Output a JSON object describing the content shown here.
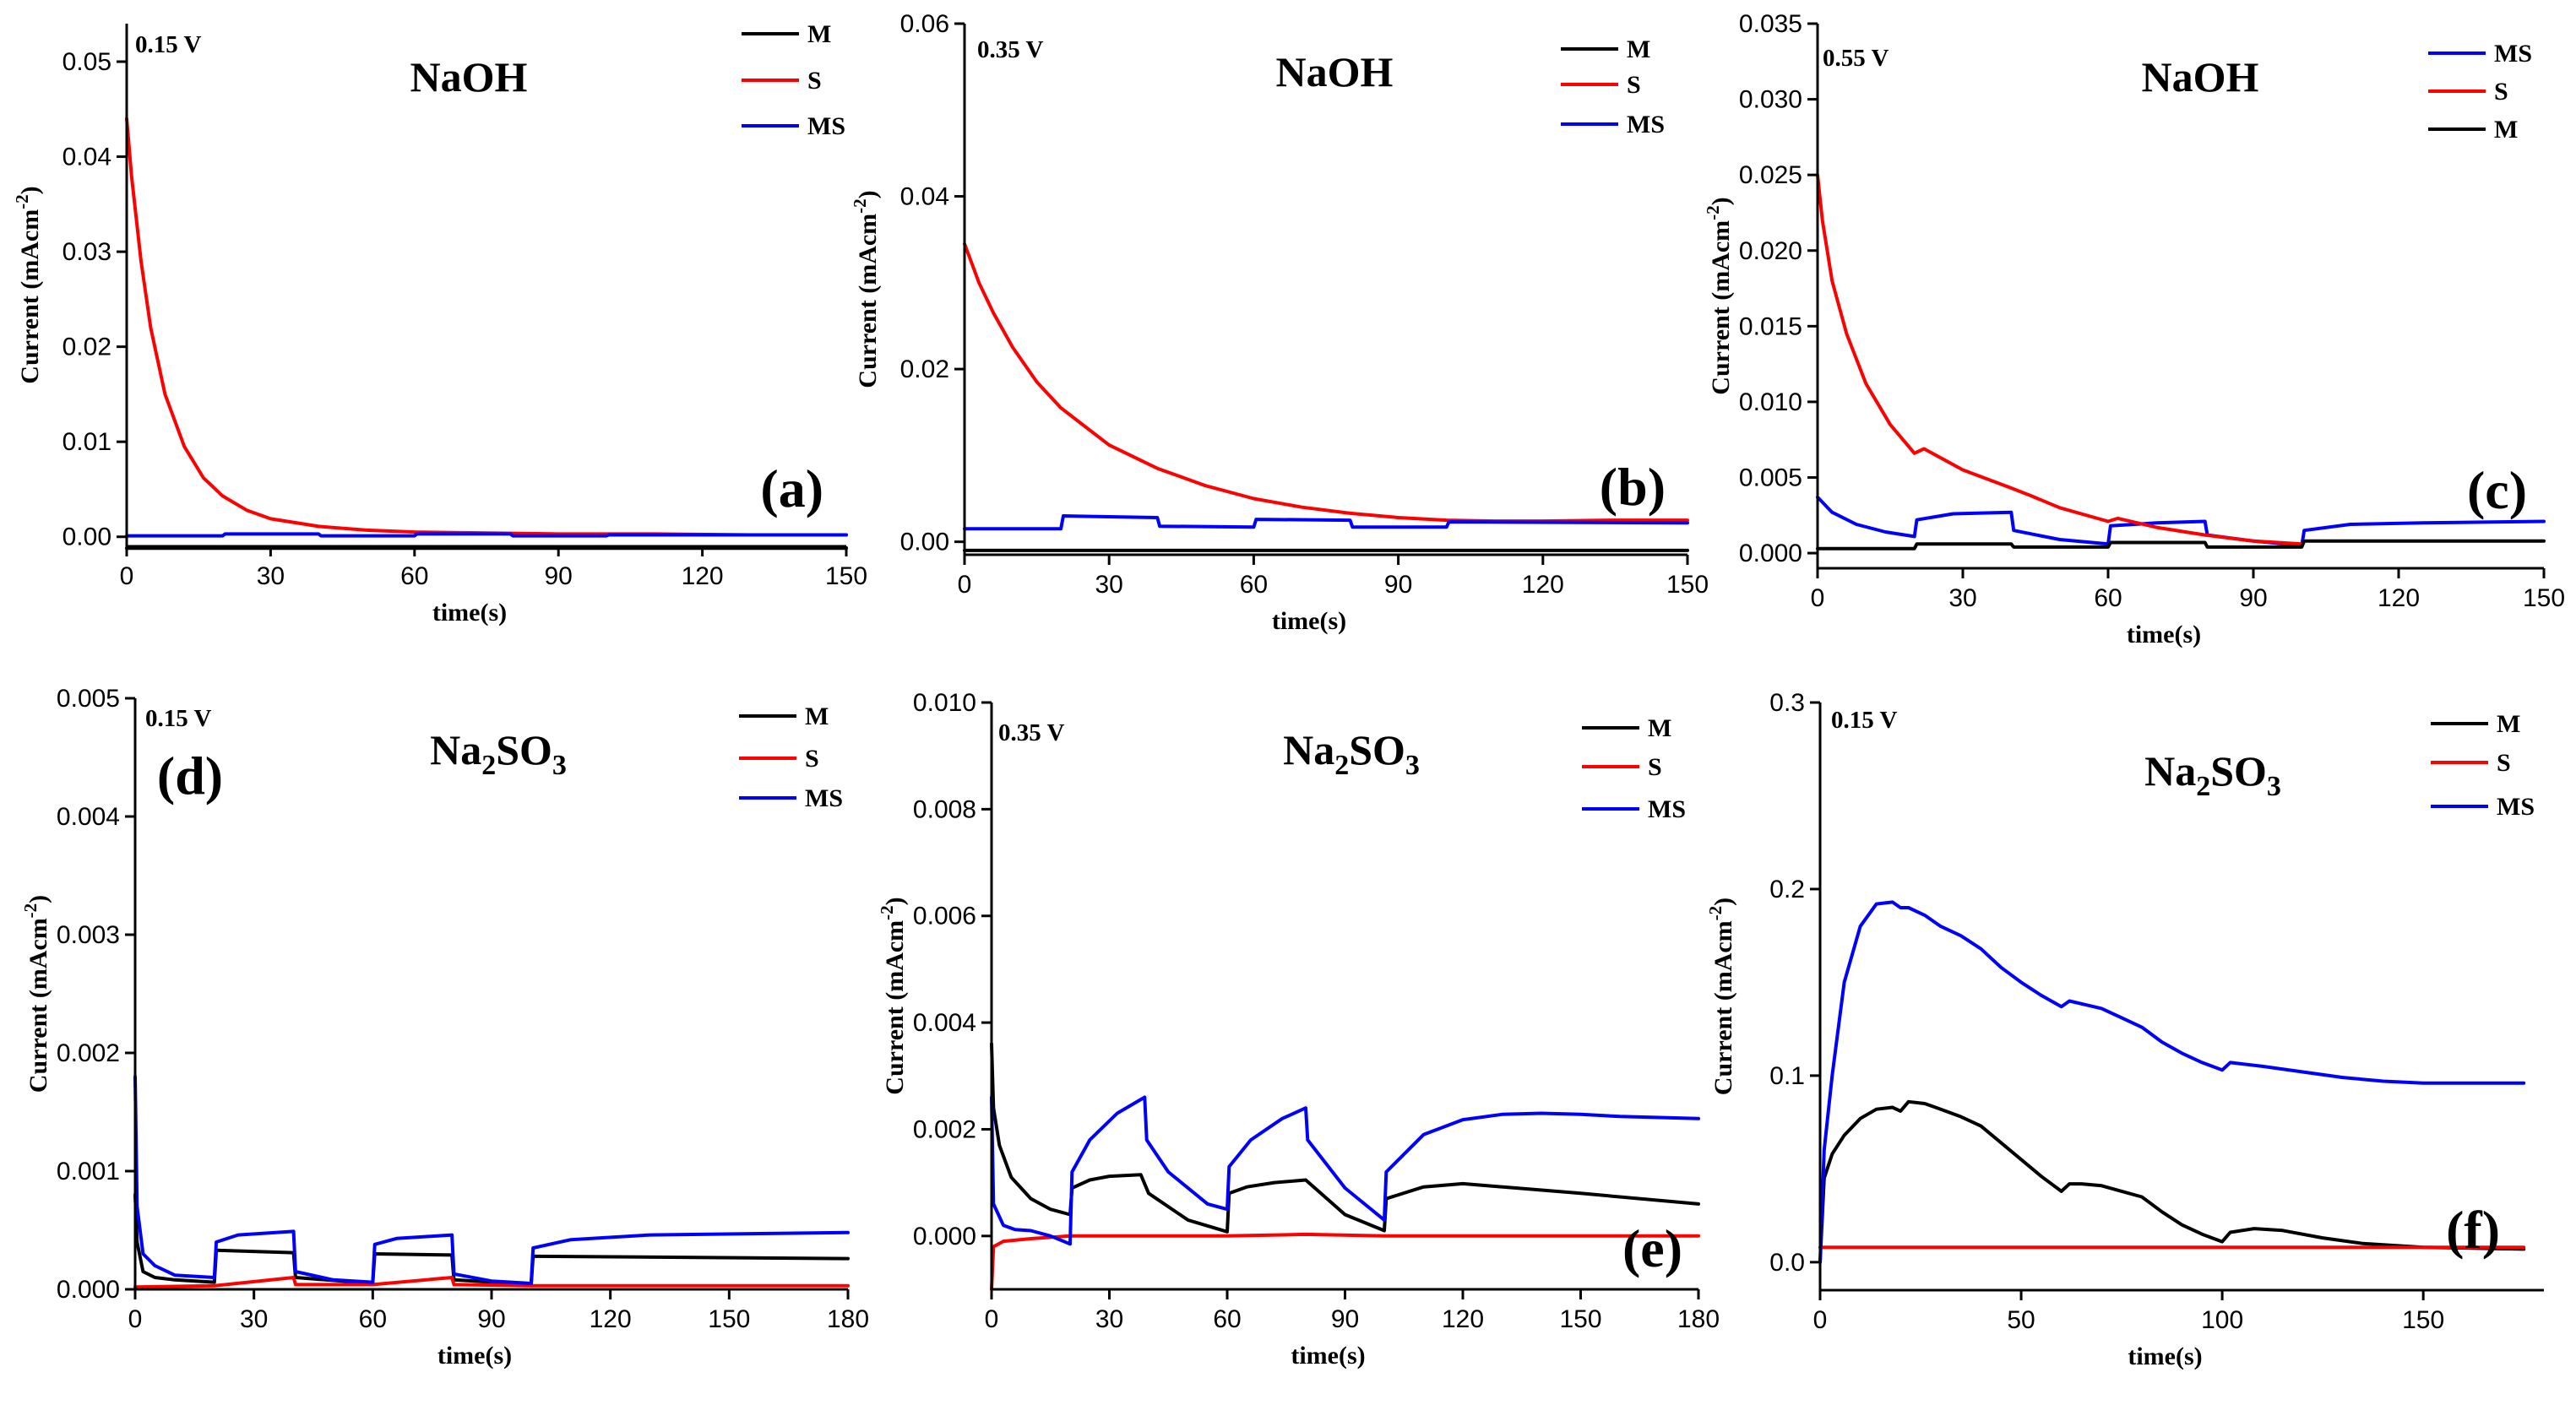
{
  "colors": {
    "M": "#000000",
    "S": "#ff0000",
    "MS": "#0000ff"
  },
  "chart_data": [
    {
      "type": "line",
      "panel": "(a)",
      "title_main": "NaOH",
      "title_sub": "",
      "title_tail": "",
      "voltage": "0.15 V",
      "xlabel": "time(s)",
      "ylabel": "Current (mAcm",
      "ylabel_sup": "-2",
      "ylabel_tail": ")",
      "xlim": [
        0,
        150
      ],
      "ylim": [
        -0.001,
        0.054
      ],
      "xticks": [
        0,
        30,
        60,
        90,
        120,
        150
      ],
      "xtick_labels": [
        "0",
        "30",
        "60",
        "90",
        "120",
        "150"
      ],
      "yticks": [
        0,
        0.01,
        0.02,
        0.03,
        0.04,
        0.05
      ],
      "ytick_labels": [
        "0.00",
        "0.01",
        "0.02",
        "0.03",
        "0.04",
        "0.05"
      ],
      "legend": [
        "M",
        "S",
        "MS"
      ],
      "series": [
        {
          "name": "M",
          "x": [
            0,
            20,
            20.5,
            150
          ],
          "y": [
            -0.0012,
            -0.0012,
            -0.0012,
            -0.0012
          ]
        },
        {
          "name": "S",
          "x": [
            0,
            1,
            3,
            5,
            8,
            12,
            16,
            20,
            25,
            30,
            40,
            50,
            60,
            75,
            90,
            110,
            130,
            150
          ],
          "y": [
            0.044,
            0.038,
            0.029,
            0.022,
            0.015,
            0.0095,
            0.0062,
            0.0043,
            0.0028,
            0.0019,
            0.0011,
            0.0007,
            0.0005,
            0.0004,
            0.0003,
            0.0003,
            0.0002,
            0.0002
          ]
        },
        {
          "name": "MS",
          "x": [
            0,
            20,
            20.5,
            40,
            40.5,
            60,
            60.5,
            80,
            80.5,
            100,
            100.5,
            150
          ],
          "y": [
            0.0001,
            0.0001,
            0.0003,
            0.0003,
            0.0001,
            0.0001,
            0.0003,
            0.0003,
            0.0001,
            0.0001,
            0.0002,
            0.0002
          ]
        }
      ]
    },
    {
      "type": "line",
      "panel": "(b)",
      "title_main": "NaOH",
      "title_sub": "",
      "title_tail": "",
      "voltage": "0.35 V",
      "xlabel": "time(s)",
      "ylabel": "Current (mAcm",
      "ylabel_sup": "-2",
      "ylabel_tail": ")",
      "xlim": [
        0,
        150
      ],
      "ylim": [
        -0.0015,
        0.06
      ],
      "xticks": [
        0,
        30,
        60,
        90,
        120,
        150
      ],
      "xtick_labels": [
        "0",
        "30",
        "60",
        "90",
        "120",
        "150"
      ],
      "yticks": [
        0,
        0.02,
        0.04,
        0.06
      ],
      "ytick_labels": [
        "0.00",
        "0.02",
        "0.04",
        "0.06"
      ],
      "legend": [
        "M",
        "S",
        "MS"
      ],
      "series": [
        {
          "name": "M",
          "x": [
            0,
            20,
            20.5,
            150
          ],
          "y": [
            -0.001,
            -0.001,
            -0.001,
            -0.001
          ]
        },
        {
          "name": "S",
          "x": [
            0,
            1,
            3,
            6,
            10,
            15,
            20,
            30,
            40,
            50,
            60,
            70,
            80,
            90,
            100,
            110,
            120,
            135,
            150
          ],
          "y": [
            0.0345,
            0.033,
            0.03,
            0.0265,
            0.0225,
            0.0185,
            0.0155,
            0.0112,
            0.0085,
            0.0065,
            0.005,
            0.004,
            0.0033,
            0.0028,
            0.0025,
            0.0024,
            0.0024,
            0.0025,
            0.0025
          ]
        },
        {
          "name": "MS",
          "x": [
            0,
            20,
            20.5,
            40,
            40.5,
            60,
            60.5,
            80,
            80.5,
            100,
            100.5,
            150
          ],
          "y": [
            0.0015,
            0.0015,
            0.003,
            0.0028,
            0.0018,
            0.0017,
            0.0026,
            0.0025,
            0.0017,
            0.0017,
            0.0023,
            0.0022
          ]
        }
      ]
    },
    {
      "type": "line",
      "panel": "(c)",
      "title_main": "NaOH",
      "title_sub": "",
      "title_tail": "",
      "voltage": "0.55 V",
      "xlabel": "time(s)",
      "ylabel": "Current (mAcm",
      "ylabel_sup": "-2",
      "ylabel_tail": ")",
      "xlim": [
        0,
        150
      ],
      "ylim": [
        -0.001,
        0.035
      ],
      "xticks": [
        0,
        30,
        60,
        90,
        120,
        150
      ],
      "xtick_labels": [
        "0",
        "30",
        "60",
        "90",
        "120",
        "150"
      ],
      "yticks": [
        0,
        0.005,
        0.01,
        0.015,
        0.02,
        0.025,
        0.03,
        0.035
      ],
      "ytick_labels": [
        "0.000",
        "0.005",
        "0.010",
        "0.015",
        "0.020",
        "0.025",
        "0.030",
        "0.035"
      ],
      "legend": [
        "MS",
        "S",
        "M"
      ],
      "series": [
        {
          "name": "MS",
          "x": [
            0,
            3,
            8,
            14,
            20,
            20.5,
            28,
            40,
            40.5,
            50,
            60,
            60.5,
            70,
            80,
            80.5,
            90,
            100,
            100.5,
            110,
            125,
            150
          ],
          "y": [
            0.0037,
            0.0027,
            0.0019,
            0.0014,
            0.0011,
            0.0022,
            0.0026,
            0.0027,
            0.0015,
            0.0009,
            0.0006,
            0.0018,
            0.002,
            0.0021,
            0.0012,
            0.0008,
            0.0005,
            0.0015,
            0.0019,
            0.002,
            0.0021
          ]
        },
        {
          "name": "S",
          "x": [
            0,
            1,
            3,
            6,
            10,
            15,
            20,
            22,
            30,
            40,
            44,
            50,
            60,
            62,
            70,
            80,
            90,
            100
          ],
          "y": [
            0.025,
            0.022,
            0.018,
            0.0145,
            0.0112,
            0.0085,
            0.0066,
            0.0069,
            0.0055,
            0.0043,
            0.0038,
            0.003,
            0.0021,
            0.0023,
            0.0017,
            0.0012,
            0.0008,
            0.0006
          ]
        },
        {
          "name": "M",
          "x": [
            0,
            20,
            20.5,
            40,
            40.5,
            60,
            60.5,
            80,
            80.5,
            100,
            100.5,
            150
          ],
          "y": [
            0.0003,
            0.0003,
            0.0006,
            0.0006,
            0.0004,
            0.0004,
            0.0007,
            0.0007,
            0.0004,
            0.0004,
            0.0008,
            0.0008
          ]
        }
      ]
    },
    {
      "type": "line",
      "panel": "(d)",
      "title_main": "Na",
      "title_sub": "2",
      "title_tail": "SO3",
      "voltage": "0.15 V",
      "xlabel": "time(s)",
      "ylabel": "Current (mAcm",
      "ylabel_sup": "-2",
      "ylabel_tail": ")",
      "xlim": [
        0,
        180
      ],
      "ylim": [
        0,
        0.005
      ],
      "xticks": [
        0,
        30,
        60,
        90,
        120,
        150,
        180
      ],
      "xtick_labels": [
        "0",
        "30",
        "60",
        "90",
        "120",
        "150",
        "180"
      ],
      "yticks": [
        0,
        0.001,
        0.002,
        0.003,
        0.004,
        0.005
      ],
      "ytick_labels": [
        "0.000",
        "0.001",
        "0.002",
        "0.003",
        "0.004",
        "0.005"
      ],
      "legend": [
        "M",
        "S",
        "MS"
      ],
      "series": [
        {
          "name": "M",
          "x": [
            0,
            0.5,
            2,
            5,
            10,
            20,
            20.5,
            40,
            40.5,
            60,
            60.5,
            80,
            80.5,
            100,
            100.5,
            180
          ],
          "y": [
            0.0008,
            0.0004,
            0.00015,
            0.0001,
            8e-05,
            6e-05,
            0.00033,
            0.00031,
            0.0001,
            5e-05,
            0.0003,
            0.00029,
            8e-05,
            4e-05,
            0.00028,
            0.00026
          ]
        },
        {
          "name": "S",
          "x": [
            0,
            20,
            40,
            40.5,
            60,
            80,
            80.5,
            100,
            180
          ],
          "y": [
            2e-05,
            3e-05,
            0.0001,
            4e-05,
            4e-05,
            0.0001,
            4e-05,
            3e-05,
            3e-05
          ]
        },
        {
          "name": "MS",
          "x": [
            0,
            0.5,
            2,
            5,
            10,
            20,
            20.5,
            26,
            40,
            40.5,
            50,
            60,
            60.5,
            66,
            80,
            80.5,
            90,
            100,
            100.5,
            110,
            130,
            180
          ],
          "y": [
            0.0018,
            0.0007,
            0.0003,
            0.0002,
            0.00012,
            0.0001,
            0.0004,
            0.00046,
            0.00049,
            0.00015,
            8e-05,
            6e-05,
            0.00038,
            0.00043,
            0.00046,
            0.00013,
            7e-05,
            5e-05,
            0.00035,
            0.00042,
            0.00046,
            0.00048
          ]
        }
      ]
    },
    {
      "type": "line",
      "panel": "(e)",
      "title_main": "Na",
      "title_sub": "2",
      "title_tail": "SO3",
      "voltage": "0.35 V",
      "xlabel": "time(s)",
      "ylabel": "Current (mAcm",
      "ylabel_sup": "-2",
      "ylabel_tail": ")",
      "xlim": [
        0,
        180
      ],
      "ylim": [
        -0.001,
        0.01
      ],
      "xticks": [
        0,
        30,
        60,
        90,
        120,
        150,
        180
      ],
      "xtick_labels": [
        "0",
        "30",
        "60",
        "90",
        "120",
        "150",
        "180"
      ],
      "yticks": [
        0,
        0.002,
        0.004,
        0.006,
        0.008,
        0.01
      ],
      "ytick_labels": [
        "0.000",
        "0.002",
        "0.004",
        "0.006",
        "0.008",
        "0.010"
      ],
      "legend": [
        "M",
        "S",
        "MS"
      ],
      "series": [
        {
          "name": "M",
          "x": [
            0,
            0.5,
            2,
            5,
            10,
            15,
            20,
            20.5,
            25,
            30,
            38,
            40,
            50,
            60,
            60.5,
            65,
            72,
            80,
            90,
            100,
            100.5,
            110,
            120,
            150,
            180
          ],
          "y": [
            0.0036,
            0.0024,
            0.0017,
            0.0011,
            0.0007,
            0.0005,
            0.0004,
            0.0009,
            0.00105,
            0.00112,
            0.00115,
            0.0008,
            0.0003,
            8e-05,
            0.0008,
            0.00092,
            0.001,
            0.00105,
            0.0004,
            0.0001,
            0.0007,
            0.00092,
            0.00098,
            0.0008,
            0.0006
          ]
        },
        {
          "name": "S",
          "x": [
            0,
            0.5,
            3,
            10,
            20,
            40,
            60,
            80,
            100,
            180
          ],
          "y": [
            -0.001,
            -0.0002,
            -0.0001,
            -5e-05,
            0,
            0,
            0,
            3e-05,
            0,
            0
          ]
        },
        {
          "name": "MS",
          "x": [
            0,
            0.5,
            3,
            6,
            10,
            15,
            20,
            20.5,
            25,
            32,
            39,
            39.5,
            45,
            55,
            60,
            60.5,
            66,
            74,
            80,
            80.5,
            90,
            100,
            100.5,
            110,
            120,
            130,
            140,
            150,
            160,
            180
          ],
          "y": [
            0.0026,
            0.0006,
            0.0002,
            0.00012,
            0.0001,
            0,
            -0.00015,
            0.0012,
            0.0018,
            0.0023,
            0.0026,
            0.0018,
            0.0012,
            0.0006,
            0.0005,
            0.0013,
            0.0018,
            0.0022,
            0.0024,
            0.0018,
            0.0009,
            0.0003,
            0.0012,
            0.0019,
            0.00218,
            0.00228,
            0.0023,
            0.00228,
            0.00224,
            0.0022
          ]
        }
      ]
    },
    {
      "type": "line",
      "panel": "(f)",
      "title_main": "Na",
      "title_sub": "2",
      "title_tail": "SO3",
      "voltage": "0.15 V",
      "xlabel": "time(s)",
      "ylabel": "Current (mAcm",
      "ylabel_sup": "-2",
      "ylabel_tail": ")",
      "xlim": [
        0,
        180
      ],
      "ylim": [
        -0.015,
        0.3
      ],
      "xticks": [
        0,
        50,
        100,
        150
      ],
      "xtick_labels": [
        "0",
        "50",
        "100",
        "150"
      ],
      "yticks": [
        0,
        0.1,
        0.2,
        0.3
      ],
      "ytick_labels": [
        "0.0",
        "0.1",
        "0.2",
        "0.3"
      ],
      "legend": [
        "M",
        "S",
        "MS"
      ],
      "series": [
        {
          "name": "M",
          "x": [
            0,
            1,
            3,
            6,
            10,
            14,
            18,
            20,
            22,
            26,
            30,
            35,
            40,
            45,
            50,
            55,
            60,
            62,
            65,
            70,
            75,
            80,
            85,
            90,
            95,
            100,
            102,
            108,
            115,
            125,
            135,
            150,
            175
          ],
          "y": [
            0.0,
            0.045,
            0.058,
            0.068,
            0.077,
            0.082,
            0.083,
            0.081,
            0.086,
            0.085,
            0.082,
            0.078,
            0.073,
            0.064,
            0.055,
            0.046,
            0.038,
            0.042,
            0.042,
            0.041,
            0.038,
            0.035,
            0.027,
            0.02,
            0.015,
            0.011,
            0.016,
            0.018,
            0.017,
            0.013,
            0.01,
            0.008,
            0.007
          ]
        },
        {
          "name": "S",
          "x": [
            0,
            175
          ],
          "y": [
            0.008,
            0.008
          ]
        },
        {
          "name": "MS",
          "x": [
            0,
            1,
            3,
            6,
            10,
            14,
            18,
            20,
            22,
            26,
            30,
            35,
            40,
            45,
            50,
            55,
            60,
            62,
            66,
            70,
            75,
            80,
            85,
            90,
            95,
            100,
            102,
            110,
            120,
            130,
            140,
            150,
            160,
            175
          ],
          "y": [
            0.0,
            0.06,
            0.1,
            0.15,
            0.18,
            0.192,
            0.193,
            0.19,
            0.19,
            0.186,
            0.18,
            0.175,
            0.168,
            0.158,
            0.15,
            0.143,
            0.137,
            0.14,
            0.138,
            0.136,
            0.131,
            0.126,
            0.118,
            0.112,
            0.107,
            0.103,
            0.107,
            0.105,
            0.102,
            0.099,
            0.097,
            0.096,
            0.096,
            0.096
          ]
        }
      ]
    }
  ]
}
